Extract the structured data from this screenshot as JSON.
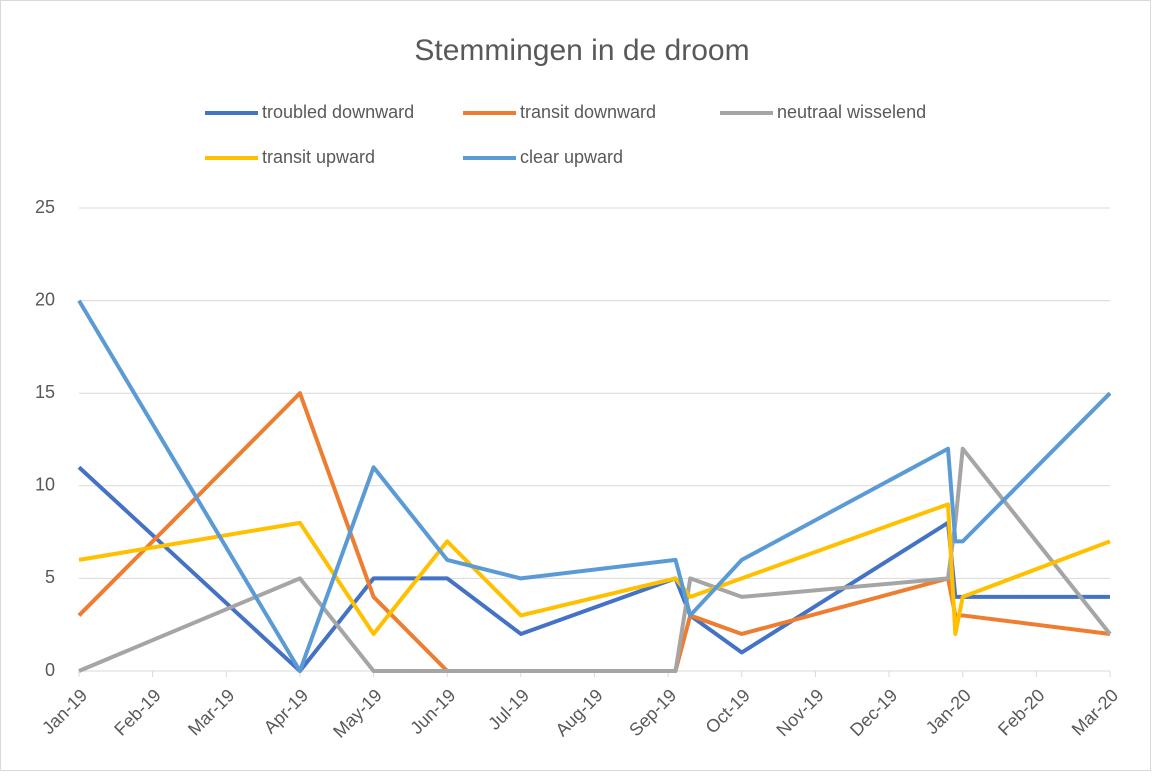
{
  "chart_data": {
    "type": "line",
    "title": "Stemmingen in de droom",
    "x": [
      0,
      3,
      4,
      5,
      6,
      8.1,
      8.3,
      9,
      11.8,
      11.9,
      12,
      14
    ],
    "xlim": [
      0,
      14
    ],
    "xticks": [
      {
        "value": 0,
        "label": "Jan-19"
      },
      {
        "value": 1,
        "label": "Feb-19"
      },
      {
        "value": 2,
        "label": "Mar-19"
      },
      {
        "value": 3,
        "label": "Apr-19"
      },
      {
        "value": 4,
        "label": "May-19"
      },
      {
        "value": 5,
        "label": "Jun-19"
      },
      {
        "value": 6,
        "label": "Jul-19"
      },
      {
        "value": 7,
        "label": "Aug-19"
      },
      {
        "value": 8,
        "label": "Sep-19"
      },
      {
        "value": 9,
        "label": "Oct-19"
      },
      {
        "value": 10,
        "label": "Nov-19"
      },
      {
        "value": 11,
        "label": "Dec-19"
      },
      {
        "value": 12,
        "label": "Jan-20"
      },
      {
        "value": 13,
        "label": "Feb-20"
      },
      {
        "value": 14,
        "label": "Mar-20"
      }
    ],
    "ylim": [
      0,
      25
    ],
    "yticks": [
      0,
      5,
      10,
      15,
      20,
      25
    ],
    "grid": true,
    "legend": "top",
    "series": [
      {
        "name": "troubled downward",
        "color": "#4472c4",
        "values": [
          11,
          0,
          5,
          5,
          2,
          5,
          3,
          1,
          8,
          4,
          4,
          4
        ]
      },
      {
        "name": "transit downward",
        "color": "#ed7d31",
        "values": [
          3,
          15,
          4,
          0,
          0,
          0,
          3,
          2,
          5,
          3,
          3,
          2
        ]
      },
      {
        "name": "neutraal wisselend",
        "color": "#a5a5a5",
        "values": [
          0,
          5,
          0,
          0,
          0,
          0,
          5,
          4,
          5,
          8,
          12,
          2
        ]
      },
      {
        "name": "transit upward",
        "color": "#ffc000",
        "values": [
          6,
          8,
          2,
          7,
          3,
          5,
          4,
          5,
          9,
          2,
          4,
          7
        ]
      },
      {
        "name": "clear upward",
        "color": "#5b9bd5",
        "values": [
          20,
          0,
          11,
          6,
          5,
          6,
          3,
          6,
          12,
          7,
          7,
          15
        ]
      }
    ]
  }
}
